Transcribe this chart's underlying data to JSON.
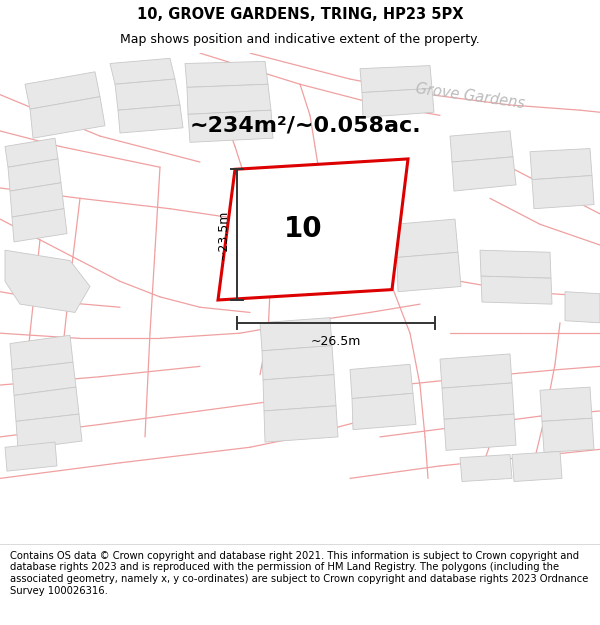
{
  "title_line1": "10, GROVE GARDENS, TRING, HP23 5PX",
  "title_line2": "Map shows position and indicative extent of the property.",
  "footer_text": "Contains OS data © Crown copyright and database right 2021. This information is subject to Crown copyright and database rights 2023 and is reproduced with the permission of HM Land Registry. The polygons (including the associated geometry, namely x, y co-ordinates) are subject to Crown copyright and database rights 2023 Ordnance Survey 100026316.",
  "area_text": "~234m²/~0.058ac.",
  "plot_number": "10",
  "dim_width": "~26.5m",
  "dim_height": "~23.5m",
  "road_label_grove_diag": "Grove Gardens",
  "road_label_grove_top": "Grove Gardens",
  "map_bg": "#ffffff",
  "plot_fill": "#f0f0f0",
  "plot_edge": "#dd0000",
  "road_line_color": "#f0a0a0",
  "other_plot_fill": "#e8e8e8",
  "other_plot_edge": "#c8c8c8",
  "road_outline_color": "#e0b0b0",
  "dim_line_color": "#333333",
  "title_fontsize": 10.5,
  "subtitle_fontsize": 9,
  "footer_fontsize": 7.2,
  "area_fontsize": 16,
  "plot_num_fontsize": 20,
  "road_label_fontsize": 10
}
